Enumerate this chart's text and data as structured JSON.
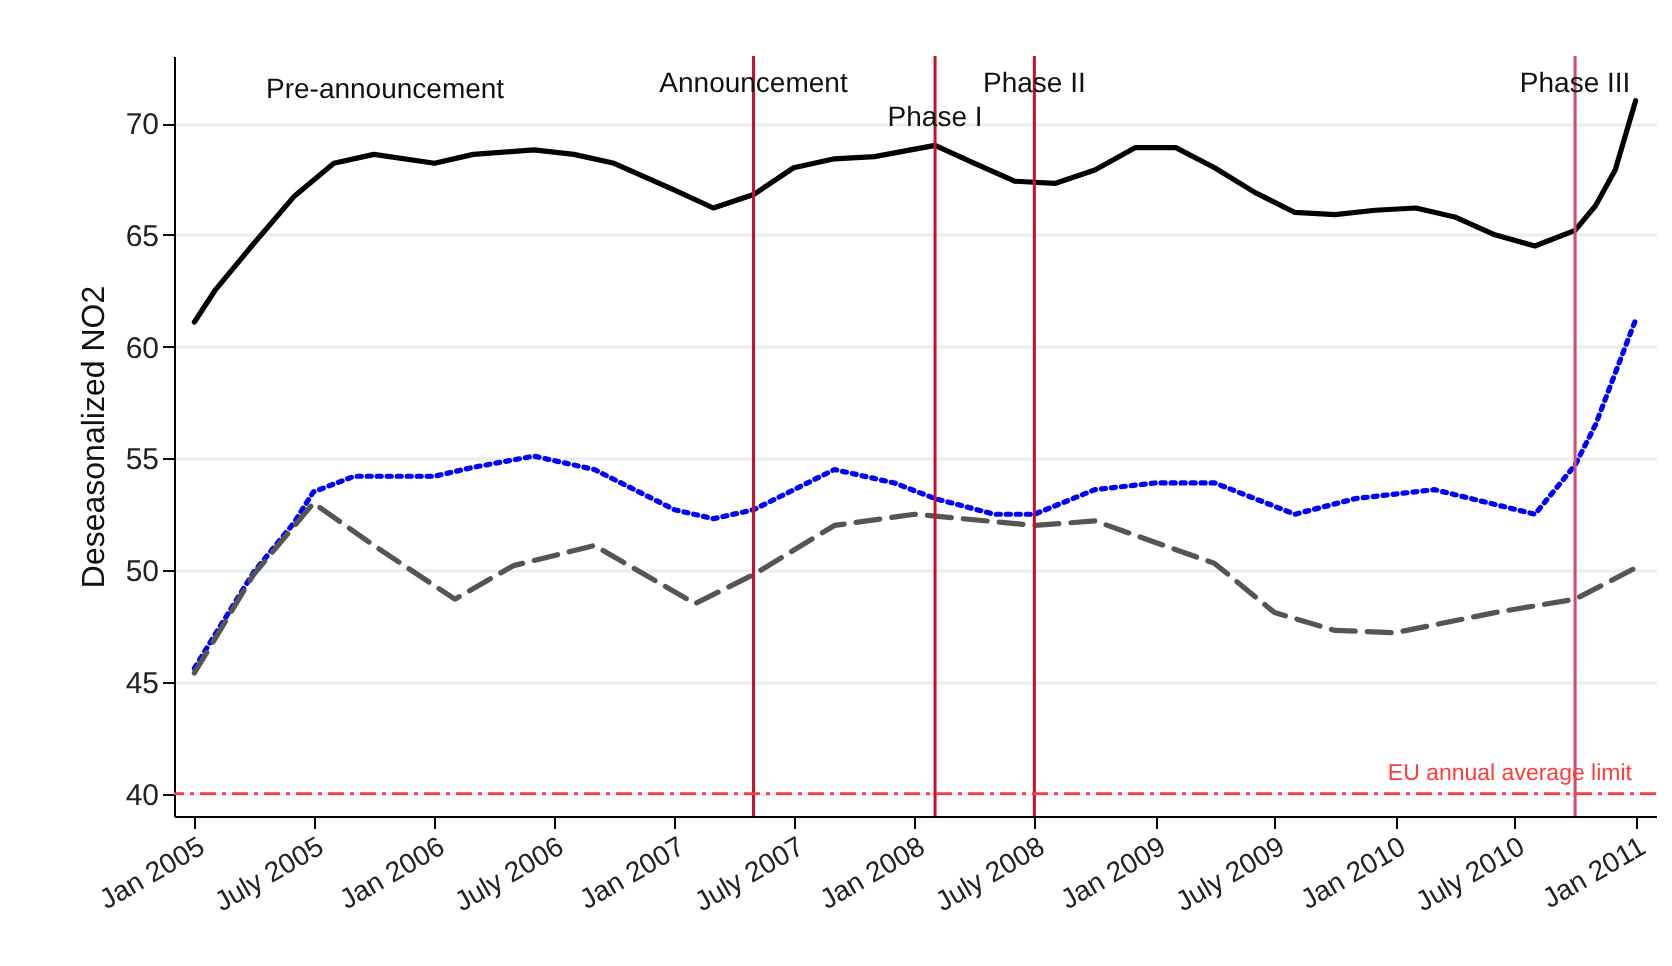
{
  "chart_data": {
    "type": "line",
    "ylabel": "Deseasonalized NO2",
    "annotations": [
      "Pre-announcement"
    ],
    "xlim": [
      "2004-12",
      "2011-02"
    ],
    "xticks": [
      {
        "value": "2005-01",
        "label": "Jan 2005"
      },
      {
        "value": "2005-07",
        "label": "July 2005"
      },
      {
        "value": "2006-01",
        "label": "Jan 2006"
      },
      {
        "value": "2006-07",
        "label": "July 2006"
      },
      {
        "value": "2007-01",
        "label": "Jan 2007"
      },
      {
        "value": "2007-07",
        "label": "July 2007"
      },
      {
        "value": "2008-01",
        "label": "Jan 2008"
      },
      {
        "value": "2008-07",
        "label": "July 2008"
      },
      {
        "value": "2009-01",
        "label": "Jan 2009"
      },
      {
        "value": "2009-07",
        "label": "July 2009"
      },
      {
        "value": "2010-01",
        "label": "Jan 2010"
      },
      {
        "value": "2010-07",
        "label": "July 2010"
      },
      {
        "value": "2011-01",
        "label": "Jan 2011"
      }
    ],
    "ylim": [
      39,
      73
    ],
    "yticks": [
      40,
      45,
      50,
      55,
      60,
      65,
      70
    ],
    "grid": "y",
    "series": [
      {
        "color": "#000000",
        "line_style": "solid",
        "x": [
          "2005-01",
          "2005-02",
          "2005-04",
          "2005-06",
          "2005-08",
          "2005-10",
          "2006-01",
          "2006-03",
          "2006-06",
          "2006-08",
          "2006-10",
          "2007-01",
          "2007-03",
          "2007-05",
          "2007-07",
          "2007-09",
          "2007-11",
          "2008-02",
          "2008-04",
          "2008-06",
          "2008-08",
          "2008-10",
          "2008-12",
          "2009-02",
          "2009-04",
          "2009-06",
          "2009-08",
          "2009-10",
          "2009-12",
          "2010-02",
          "2010-04",
          "2010-06",
          "2010-08",
          "2010-10",
          "2010-11",
          "2010-12",
          "2011-01"
        ],
        "values": [
          61.1,
          62.5,
          64.6,
          66.7,
          68.2,
          68.6,
          68.2,
          68.6,
          68.8,
          68.6,
          68.2,
          67.0,
          66.2,
          66.8,
          68.0,
          68.4,
          68.5,
          69.0,
          68.2,
          67.4,
          67.3,
          67.9,
          68.9,
          68.9,
          68.0,
          66.9,
          66.0,
          65.9,
          66.1,
          66.2,
          65.8,
          65.0,
          64.5,
          65.2,
          66.3,
          67.9,
          71.0
        ]
      },
      {
        "color": "#0000ff",
        "line_style": "dotted",
        "x": [
          "2005-01",
          "2005-02",
          "2005-04",
          "2005-06",
          "2005-07",
          "2005-09",
          "2006-01",
          "2006-03",
          "2006-06",
          "2006-09",
          "2007-01",
          "2007-03",
          "2007-05",
          "2007-09",
          "2007-12",
          "2008-02",
          "2008-05",
          "2008-07",
          "2008-10",
          "2009-01",
          "2009-04",
          "2009-08",
          "2009-11",
          "2010-03",
          "2010-08",
          "2010-10",
          "2010-11",
          "2011-01"
        ],
        "values": [
          45.6,
          47.1,
          49.9,
          52.1,
          53.5,
          54.2,
          54.2,
          54.6,
          55.1,
          54.5,
          52.7,
          52.3,
          52.7,
          54.5,
          53.9,
          53.2,
          52.5,
          52.5,
          53.6,
          53.9,
          53.9,
          52.5,
          53.2,
          53.6,
          52.5,
          54.7,
          56.5,
          61.2
        ]
      },
      {
        "color": "#555555",
        "line_style": "dashed",
        "x": [
          "2005-01",
          "2005-04",
          "2005-07",
          "2005-10",
          "2006-02",
          "2006-05",
          "2006-09",
          "2007-02",
          "2007-05",
          "2007-09",
          "2008-01",
          "2008-07",
          "2008-10",
          "2009-04",
          "2009-07",
          "2009-10",
          "2010-01",
          "2010-06",
          "2010-10",
          "2011-01"
        ],
        "values": [
          45.4,
          49.8,
          53.0,
          51.1,
          48.7,
          50.2,
          51.1,
          48.5,
          49.8,
          52.0,
          52.5,
          52.0,
          52.2,
          50.3,
          48.1,
          47.3,
          47.2,
          48.1,
          48.7,
          50.1
        ]
      }
    ],
    "ref_lines": [
      {
        "axis": "x",
        "value": "2007-05",
        "label": "Announcement",
        "color": "#c8102e"
      },
      {
        "axis": "x",
        "value": "2008-02",
        "label": "Phase I",
        "color": "#c8102e"
      },
      {
        "axis": "x",
        "value": "2008-07",
        "label": "Phase II",
        "color": "#c8102e"
      },
      {
        "axis": "x",
        "value": "2010-10",
        "label": "Phase III",
        "color": "#d24a6e"
      },
      {
        "axis": "y",
        "value": 40,
        "label": "EU annual average limit",
        "color": "#ff3b3b",
        "line_style": "dashed"
      }
    ]
  }
}
